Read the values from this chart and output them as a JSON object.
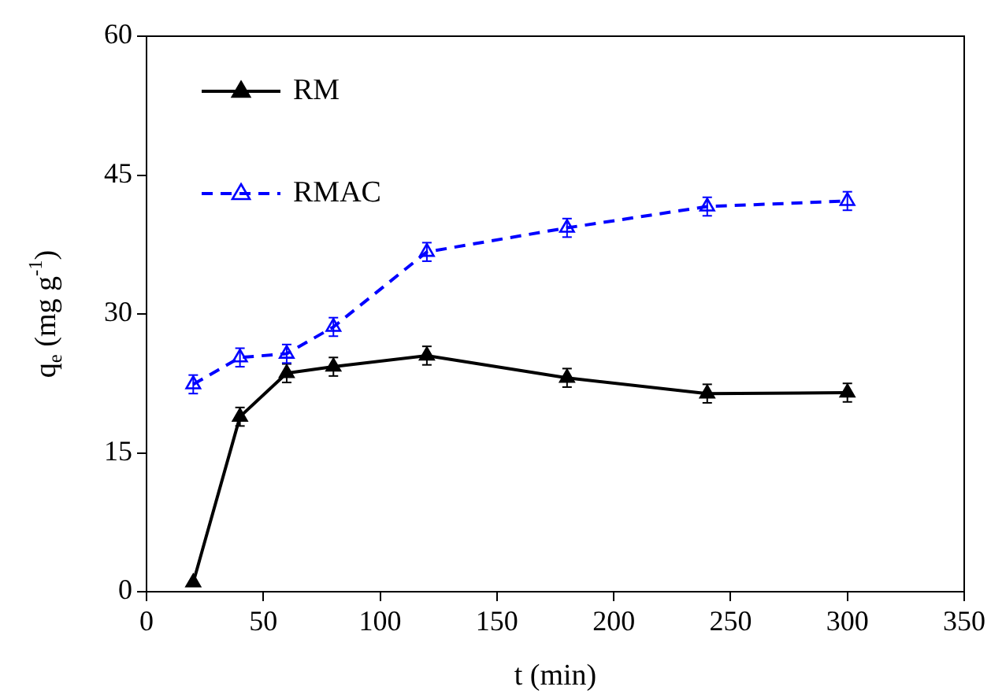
{
  "chart_data": {
    "type": "line",
    "xlabel": "t (min)",
    "ylabel": "q$_{e}$ (mg g$^{-1}$)",
    "x": [
      20,
      40,
      60,
      80,
      120,
      180,
      240,
      300
    ],
    "series": [
      {
        "name": "RM",
        "color": "#000000",
        "line_style": "solid",
        "values": [
          1.0,
          18.9,
          23.6,
          24.3,
          25.5,
          23.1,
          21.4,
          21.5
        ],
        "errors": [
          null,
          1,
          1,
          1,
          1,
          1,
          1,
          1
        ]
      },
      {
        "name": "RMAC",
        "color": "#0000ff",
        "line_style": "dashed",
        "values": [
          22.4,
          25.3,
          25.7,
          28.6,
          36.7,
          39.3,
          41.6,
          42.2
        ],
        "errors": [
          1,
          1,
          1,
          1,
          1,
          1,
          1,
          1
        ]
      }
    ],
    "xlim": [
      0,
      350
    ],
    "xticks": [
      0,
      50,
      100,
      150,
      200,
      250,
      300,
      350
    ],
    "ylim": [
      0,
      60
    ],
    "yticks": [
      0,
      15,
      30,
      45,
      60
    ],
    "grid": false,
    "legend": "top left",
    "marker": "triangle"
  }
}
